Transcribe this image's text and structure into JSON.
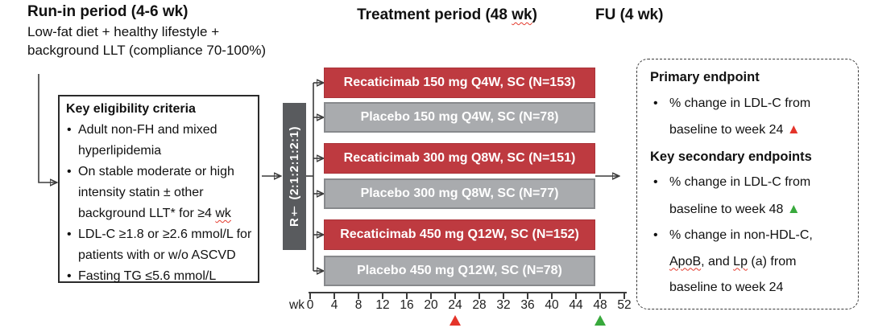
{
  "colors": {
    "active_arm": "#BE3A40",
    "active_arm_border": "#A93339",
    "placebo_arm": "#A9ABAE",
    "placebo_arm_border": "#87898C",
    "randomization_bar": "#595B5E",
    "red_marker": "#E4342A",
    "green_marker": "#38A93C",
    "line": "#3B3B3B"
  },
  "headers": {
    "run_in_title": "Run-in period (4-6 wk)",
    "run_in_sub": [
      "Low-fat diet + healthy lifestyle +",
      "background LLT (compliance 70-100%)"
    ],
    "treatment_title_pre": "Treatment period (48 ",
    "treatment_title_wk": "wk",
    "treatment_title_post": ")",
    "fu_title": "FU (4 wk)"
  },
  "eligibility": {
    "title": "Key eligibility criteria",
    "bullet_char": "•",
    "b1_l1": "Adult non-FH and mixed",
    "b1_l2": "hyperlipidemia",
    "b2_l1": "On stable moderate or high",
    "b2_l2": "intensity statin ± other",
    "b2_l3a": "background LLT* for ≥4 ",
    "b2_l3b": "wk",
    "b3_l1": "LDL-C ≥1.8 or ≥2.6 mmol/L for",
    "b3_l2": "patients with or w/o ASCVD",
    "b4_l1": "Fasting TG ≤5.6 mmol/L"
  },
  "randomization": {
    "label": "R† (2:1:2:1:2:1)"
  },
  "arms": [
    {
      "label": "Recaticimab 150 mg Q4W, SC (N=153)",
      "type": "active"
    },
    {
      "label": "Placebo 150 mg Q4W, SC (N=78)",
      "type": "placebo"
    },
    {
      "label": "Recaticimab 300 mg Q8W, SC (N=151)",
      "type": "active"
    },
    {
      "label": "Placebo 300 mg Q8W, SC (N=77)",
      "type": "placebo"
    },
    {
      "label": "Recaticimab 450 mg Q12W, SC (N=152)",
      "type": "active"
    },
    {
      "label": "Placebo 450 mg Q12W, SC (N=78)",
      "type": "placebo"
    }
  ],
  "axis": {
    "unit_label": "wk",
    "ticks": [
      0,
      4,
      8,
      12,
      16,
      20,
      24,
      28,
      32,
      36,
      40,
      44,
      48,
      52
    ],
    "red_marker_wk": 24,
    "green_marker_wk": 48
  },
  "endpoints": {
    "bullet_char": "•",
    "triangle": "▲",
    "primary_heading": "Primary endpoint",
    "p1_l1": "% change in LDL-C from",
    "p1_l2": "baseline to week 24 ",
    "secondary_heading": "Key secondary endpoints",
    "s1_l1": "% change in LDL-C from",
    "s1_l2": "baseline to week 48 ",
    "s2_l1": "% change in non-HDL-C,",
    "s2_l2a": "ApoB",
    "s2_l2b": ", and ",
    "s2_l2c": "Lp",
    "s2_l2d": " (a) from",
    "s2_l3": "baseline to week 24"
  }
}
